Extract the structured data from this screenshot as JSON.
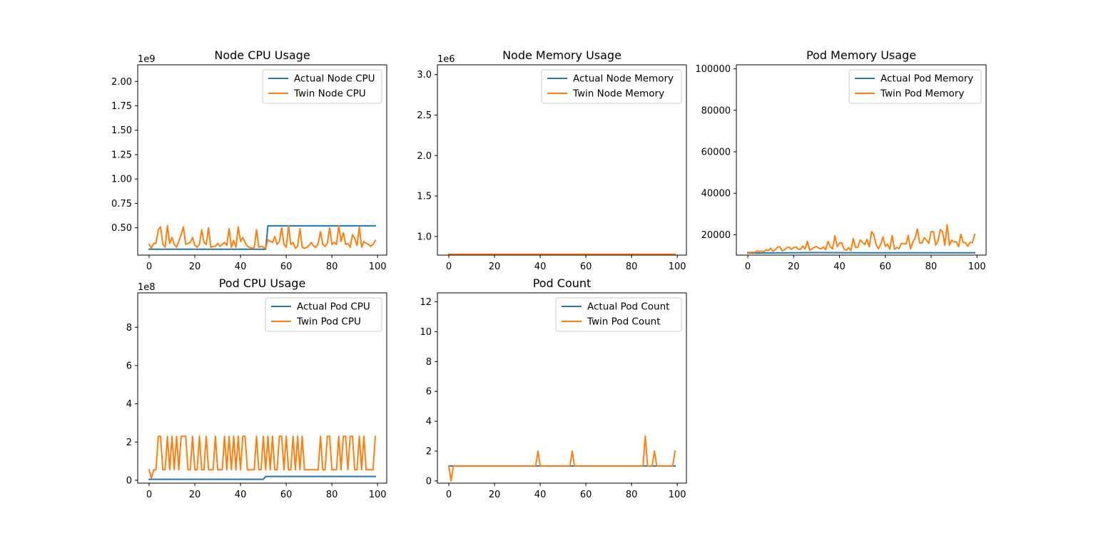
{
  "colors": {
    "actual": "#1f77b4",
    "twin": "#ff7f0e",
    "axis": "#000000",
    "legend_border": "#cccccc"
  },
  "chart_data": [
    {
      "id": "node-cpu",
      "type": "line",
      "title": "Node CPU Usage",
      "xlabel": "",
      "ylabel": "",
      "xlim": [
        -5,
        104
      ],
      "ylim": [
        0.22,
        2.17
      ],
      "y_exponent_label": "1e9",
      "xticks": [
        0,
        20,
        40,
        60,
        80,
        100
      ],
      "yticks": [
        0.5,
        0.75,
        1.0,
        1.25,
        1.5,
        1.75,
        2.0
      ],
      "ytick_labels": [
        "0.50",
        "0.75",
        "1.00",
        "1.25",
        "1.50",
        "1.75",
        "2.00"
      ],
      "legend": "upper right",
      "grid": false,
      "series": [
        {
          "name": "Actual Node CPU",
          "role": "actual",
          "x": [
            0,
            51,
            52,
            99
          ],
          "y": [
            0.28,
            0.28,
            0.52,
            0.52
          ]
        },
        {
          "name": "Twin Node CPU",
          "role": "twin",
          "x": [
            0,
            1,
            2,
            3,
            4,
            5,
            6,
            7,
            8,
            9,
            10,
            11,
            12,
            13,
            14,
            15,
            16,
            17,
            18,
            19,
            20,
            21,
            22,
            23,
            24,
            25,
            26,
            27,
            28,
            29,
            30,
            31,
            32,
            33,
            34,
            35,
            36,
            37,
            38,
            39,
            40,
            41,
            42,
            43,
            44,
            45,
            46,
            47,
            48,
            49,
            50,
            51,
            52,
            53,
            54,
            55,
            56,
            57,
            58,
            59,
            60,
            61,
            62,
            63,
            64,
            65,
            66,
            67,
            68,
            69,
            70,
            71,
            72,
            73,
            74,
            75,
            76,
            77,
            78,
            79,
            80,
            81,
            82,
            83,
            84,
            85,
            86,
            87,
            88,
            89,
            90,
            91,
            92,
            93,
            94,
            95,
            96,
            97,
            98,
            99
          ],
          "y": [
            0.33,
            0.29,
            0.34,
            0.34,
            0.48,
            0.51,
            0.33,
            0.3,
            0.52,
            0.34,
            0.4,
            0.33,
            0.3,
            0.36,
            0.43,
            0.51,
            0.33,
            0.34,
            0.35,
            0.4,
            0.32,
            0.3,
            0.33,
            0.48,
            0.35,
            0.33,
            0.5,
            0.3,
            0.31,
            0.31,
            0.34,
            0.31,
            0.33,
            0.35,
            0.32,
            0.49,
            0.3,
            0.37,
            0.3,
            0.51,
            0.36,
            0.4,
            0.35,
            0.31,
            0.3,
            0.29,
            0.3,
            0.48,
            0.3,
            0.31,
            0.3,
            0.29,
            0.38,
            0.36,
            0.35,
            0.41,
            0.33,
            0.36,
            0.5,
            0.33,
            0.3,
            0.52,
            0.33,
            0.35,
            0.29,
            0.31,
            0.49,
            0.3,
            0.29,
            0.3,
            0.32,
            0.35,
            0.31,
            0.3,
            0.34,
            0.46,
            0.33,
            0.31,
            0.34,
            0.5,
            0.33,
            0.35,
            0.33,
            0.52,
            0.36,
            0.45,
            0.33,
            0.34,
            0.3,
            0.43,
            0.39,
            0.32,
            0.51,
            0.3,
            0.36,
            0.34,
            0.33,
            0.31,
            0.33,
            0.37
          ]
        }
      ]
    },
    {
      "id": "node-memory",
      "type": "line",
      "title": "Node Memory Usage",
      "xlabel": "",
      "ylabel": "",
      "xlim": [
        -5,
        104
      ],
      "ylim": [
        0.77,
        3.12
      ],
      "y_exponent_label": "1e6",
      "xticks": [
        0,
        20,
        40,
        60,
        80,
        100
      ],
      "yticks": [
        1.0,
        1.5,
        2.0,
        2.5,
        3.0
      ],
      "ytick_labels": [
        "1.0",
        "1.5",
        "2.0",
        "2.5",
        "3.0"
      ],
      "legend": "upper right",
      "grid": false,
      "series": [
        {
          "name": "Actual Node Memory",
          "role": "actual",
          "x": [
            0,
            99
          ],
          "y": [
            0.78,
            0.78
          ]
        },
        {
          "name": "Twin Node Memory",
          "role": "twin",
          "x": [
            0,
            99
          ],
          "y": [
            0.78,
            0.78
          ]
        }
      ]
    },
    {
      "id": "pod-memory",
      "type": "line",
      "title": "Pod Memory Usage",
      "xlabel": "",
      "ylabel": "",
      "xlim": [
        -5,
        104
      ],
      "ylim": [
        10200,
        101900
      ],
      "y_exponent_label": "",
      "xticks": [
        0,
        20,
        40,
        60,
        80,
        100
      ],
      "yticks": [
        20000,
        40000,
        60000,
        80000,
        100000
      ],
      "ytick_labels": [
        "20000",
        "40000",
        "60000",
        "80000",
        "100000"
      ],
      "legend": "upper right",
      "grid": false,
      "series": [
        {
          "name": "Actual Pod Memory",
          "role": "actual",
          "x": [
            0,
            30,
            50,
            99
          ],
          "y": [
            11200,
            11400,
            11300,
            11300
          ]
        },
        {
          "name": "Twin Pod Memory",
          "role": "twin",
          "x": [
            0,
            1,
            2,
            3,
            4,
            5,
            6,
            7,
            8,
            9,
            10,
            11,
            12,
            13,
            14,
            15,
            16,
            17,
            18,
            19,
            20,
            21,
            22,
            23,
            24,
            25,
            26,
            27,
            28,
            29,
            30,
            31,
            32,
            33,
            34,
            35,
            36,
            37,
            38,
            39,
            40,
            41,
            42,
            43,
            44,
            45,
            46,
            47,
            48,
            49,
            50,
            51,
            52,
            53,
            54,
            55,
            56,
            57,
            58,
            59,
            60,
            61,
            62,
            63,
            64,
            65,
            66,
            67,
            68,
            69,
            70,
            71,
            72,
            73,
            74,
            75,
            76,
            77,
            78,
            79,
            80,
            81,
            82,
            83,
            84,
            85,
            86,
            87,
            88,
            89,
            90,
            91,
            92,
            93,
            94,
            95,
            96,
            97,
            98,
            99
          ],
          "y": [
            11500,
            11500,
            11600,
            11500,
            12200,
            12000,
            12200,
            11800,
            12800,
            12400,
            13500,
            12100,
            12800,
            14000,
            14200,
            12300,
            12700,
            13800,
            14000,
            12900,
            13800,
            14200,
            13000,
            13000,
            14500,
            13100,
            16800,
            12500,
            13200,
            13900,
            14300,
            13500,
            13200,
            14100,
            12800,
            16800,
            14100,
            13200,
            19500,
            14300,
            16000,
            16200,
            13000,
            12500,
            13800,
            12400,
            18200,
            14000,
            13900,
            17500,
            16400,
            15300,
            17800,
            14200,
            21500,
            20000,
            15200,
            13200,
            15400,
            19000,
            14400,
            15500,
            13100,
            19700,
            13000,
            13900,
            13300,
            15800,
            15800,
            15500,
            19700,
            13200,
            16400,
            18500,
            22800,
            16100,
            16000,
            18600,
            17400,
            15900,
            21500,
            21500,
            15000,
            17000,
            22500,
            21400,
            15000,
            24800,
            14900,
            17400,
            16500,
            16600,
            14300,
            20300,
            16300,
            16200,
            14400,
            16400,
            16100,
            20200
          ]
        }
      ]
    },
    {
      "id": "pod-cpu",
      "type": "line",
      "title": "Pod CPU Usage",
      "xlabel": "",
      "ylabel": "",
      "xlim": [
        -5,
        104
      ],
      "ylim": [
        -0.15,
        9.8
      ],
      "y_exponent_label": "1e8",
      "xticks": [
        0,
        20,
        40,
        60,
        80,
        100
      ],
      "yticks": [
        0,
        2,
        4,
        6,
        8
      ],
      "ytick_labels": [
        "0",
        "2",
        "4",
        "6",
        "8"
      ],
      "legend": "upper right",
      "grid": false,
      "series": [
        {
          "name": "Actual Pod CPU",
          "role": "actual",
          "x": [
            0,
            50,
            51,
            99
          ],
          "y": [
            0.05,
            0.05,
            0.2,
            0.2
          ]
        },
        {
          "name": "Twin Pod CPU",
          "role": "twin",
          "x": [
            0,
            1,
            2,
            3,
            4,
            5,
            6,
            7,
            8,
            9,
            10,
            11,
            12,
            13,
            14,
            15,
            16,
            17,
            18,
            19,
            20,
            21,
            22,
            23,
            24,
            25,
            26,
            27,
            28,
            29,
            30,
            31,
            32,
            33,
            34,
            35,
            36,
            37,
            38,
            39,
            40,
            41,
            42,
            43,
            44,
            45,
            46,
            47,
            48,
            49,
            50,
            51,
            52,
            53,
            54,
            55,
            56,
            57,
            58,
            59,
            60,
            61,
            62,
            63,
            64,
            65,
            66,
            67,
            68,
            69,
            70,
            71,
            72,
            73,
            74,
            75,
            76,
            77,
            78,
            79,
            80,
            81,
            82,
            83,
            84,
            85,
            86,
            87,
            88,
            89,
            90,
            91,
            92,
            93,
            94,
            95,
            96,
            97,
            98,
            99
          ],
          "y": [
            0.55,
            0.1,
            0.55,
            0.55,
            2.3,
            2.3,
            0.55,
            0.55,
            2.3,
            0.55,
            2.3,
            0.55,
            2.3,
            0.55,
            2.3,
            2.3,
            2.3,
            0.55,
            0.55,
            2.3,
            0.55,
            0.55,
            2.3,
            0.55,
            0.55,
            2.3,
            0.55,
            0.55,
            0.55,
            2.3,
            0.55,
            0.55,
            0.55,
            2.3,
            0.55,
            2.3,
            0.55,
            2.3,
            0.55,
            2.3,
            0.55,
            2.3,
            2.3,
            0.55,
            0.55,
            0.55,
            0.55,
            2.3,
            0.55,
            0.55,
            2.3,
            0.55,
            2.3,
            0.55,
            2.3,
            0.55,
            0.55,
            2.3,
            2.3,
            0.55,
            2.3,
            0.55,
            0.55,
            2.3,
            0.55,
            2.3,
            0.55,
            2.3,
            0.55,
            0.55,
            0.55,
            0.55,
            0.55,
            0.55,
            0.55,
            2.3,
            0.55,
            0.55,
            2.3,
            2.3,
            0.55,
            0.55,
            0.55,
            2.3,
            0.55,
            2.3,
            2.3,
            0.55,
            2.3,
            2.3,
            0.55,
            0.55,
            2.3,
            0.55,
            2.3,
            0.55,
            0.55,
            0.55,
            0.55,
            2.3
          ]
        }
      ]
    },
    {
      "id": "pod-count",
      "type": "line",
      "title": "Pod Count",
      "xlabel": "",
      "ylabel": "",
      "xlim": [
        -5,
        104
      ],
      "ylim": [
        -0.15,
        12.6
      ],
      "y_exponent_label": "",
      "xticks": [
        0,
        20,
        40,
        60,
        80,
        100
      ],
      "yticks": [
        0,
        2,
        4,
        6,
        8,
        10,
        12
      ],
      "ytick_labels": [
        "0",
        "2",
        "4",
        "6",
        "8",
        "10",
        "12"
      ],
      "legend": "upper right",
      "grid": false,
      "series": [
        {
          "name": "Actual Pod Count",
          "role": "actual",
          "x": [
            0,
            99
          ],
          "y": [
            1,
            1
          ]
        },
        {
          "name": "Twin Pod Count",
          "role": "twin",
          "x": [
            0,
            1,
            2,
            38,
            39,
            40,
            53,
            54,
            55,
            85,
            86,
            87,
            89,
            90,
            91,
            98,
            99
          ],
          "y": [
            1,
            0,
            1,
            1,
            2,
            1,
            1,
            2,
            1,
            1,
            3,
            1,
            1,
            2,
            1,
            1,
            2
          ]
        }
      ]
    }
  ]
}
